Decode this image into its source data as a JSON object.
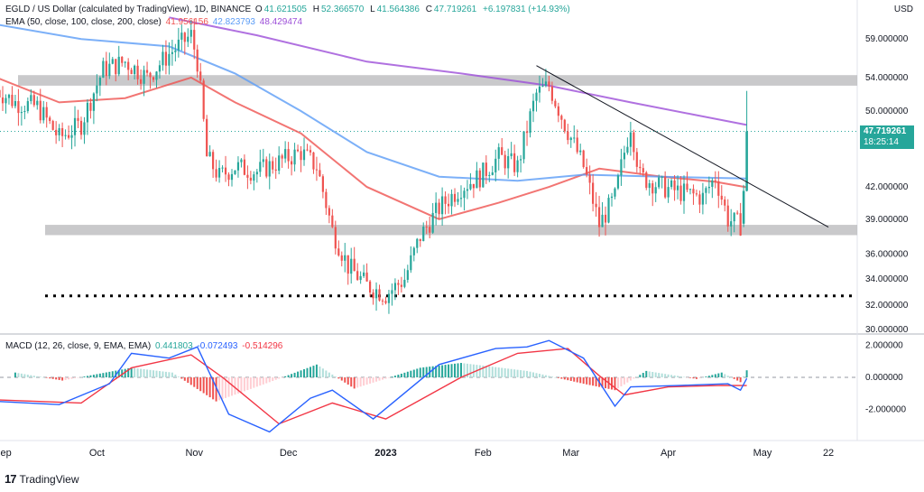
{
  "legend": {
    "symbol": "EGLD / US Dollar (calculated by TradingView), 1D, BINANCE",
    "o_label": "O",
    "o": "41.621505",
    "h_label": "H",
    "h": "52.366570",
    "l_label": "L",
    "l": "41.564386",
    "c_label": "C",
    "c": "47.719261",
    "change": "+6.197831 (+14.93%)",
    "ema_label": "EMA (50, close, 100, close, 200, close)",
    "ema50": "41.956156",
    "ema100": "42.823793",
    "ema200": "48.429474",
    "macd_label": "MACD (12, 26, close, 9, EMA, EMA)",
    "macd_hist": "0.441803",
    "macd_line": "-0.072493",
    "macd_signal": "-0.514296"
  },
  "currency": "USD",
  "last_price": "47.719261",
  "countdown": "18:25:14",
  "branding": "TradingView",
  "colors": {
    "up": "#26a69a",
    "down": "#ef5350",
    "ema50": "#ef5350",
    "ema100": "#5b9cf6",
    "ema200": "#9c4ed8",
    "macd_line": "#2962ff",
    "signal_line": "#f23645",
    "hist_up": "#26a69a",
    "hist_down": "#ef5350"
  },
  "chart_data": [
    {
      "type": "candlestick",
      "title": "EGLD / US Dollar",
      "interval": "1D",
      "y_scale": "log",
      "y_tick_labels": [
        "30.000000",
        "32.000000",
        "34.000000",
        "36.000000",
        "39.000000",
        "42.000000",
        "47.719261",
        "50.000000",
        "54.000000",
        "59.000000"
      ],
      "x_tick_labels": [
        "Sep",
        "Oct",
        "Nov",
        "Dec",
        "2023",
        "Feb",
        "Mar",
        "Apr",
        "May",
        "22"
      ],
      "price_path": [
        [
          "2022-08-30",
          52.5
        ],
        [
          "2022-09-05",
          51
        ],
        [
          "2022-09-12",
          50.5
        ],
        [
          "2022-09-19",
          47
        ],
        [
          "2022-09-26",
          48.5
        ],
        [
          "2022-10-03",
          55
        ],
        [
          "2022-10-10",
          56
        ],
        [
          "2022-10-17",
          54
        ],
        [
          "2022-10-24",
          57
        ],
        [
          "2022-10-31",
          59.5
        ],
        [
          "2022-11-02",
          56
        ],
        [
          "2022-11-05",
          45
        ],
        [
          "2022-11-09",
          43
        ],
        [
          "2022-11-14",
          44
        ],
        [
          "2022-11-21",
          43.5
        ],
        [
          "2022-11-28",
          44.5
        ],
        [
          "2022-12-05",
          45.5
        ],
        [
          "2022-12-10",
          44
        ],
        [
          "2022-12-15",
          38
        ],
        [
          "2022-12-20",
          35
        ],
        [
          "2022-12-26",
          33.5
        ],
        [
          "2023-01-01",
          32.8
        ],
        [
          "2023-01-07",
          34
        ],
        [
          "2023-01-12",
          37.5
        ],
        [
          "2023-01-18",
          40
        ],
        [
          "2023-01-25",
          42
        ],
        [
          "2023-01-31",
          43
        ],
        [
          "2023-02-06",
          45
        ],
        [
          "2023-02-12",
          44
        ],
        [
          "2023-02-18",
          52
        ],
        [
          "2023-02-22",
          53
        ],
        [
          "2023-02-27",
          48.5
        ],
        [
          "2023-03-05",
          44
        ],
        [
          "2023-03-10",
          38.5
        ],
        [
          "2023-03-15",
          41
        ],
        [
          "2023-03-20",
          48.5
        ],
        [
          "2023-03-23",
          43
        ],
        [
          "2023-03-30",
          42
        ],
        [
          "2023-04-05",
          41.5
        ],
        [
          "2023-04-12",
          41
        ],
        [
          "2023-04-16",
          43
        ],
        [
          "2023-04-20",
          39
        ],
        [
          "2023-04-24",
          38.5
        ],
        [
          "2023-04-25",
          41.6
        ],
        [
          "2023-04-26",
          47.7
        ]
      ],
      "last_candle": {
        "open": 41.621505,
        "high": 52.36657,
        "low": 41.564386,
        "close": 47.719261
      },
      "series": [
        {
          "name": "EMA 50",
          "path": [
            [
              "2022-08-30",
              54
            ],
            [
              "2022-09-19",
              51
            ],
            [
              "2022-10-10",
              51.5
            ],
            [
              "2022-10-31",
              54
            ],
            [
              "2022-11-14",
              51
            ],
            [
              "2022-12-05",
              47.5
            ],
            [
              "2022-12-26",
              42
            ],
            [
              "2023-01-18",
              39
            ],
            [
              "2023-02-06",
              40.5
            ],
            [
              "2023-02-22",
              42
            ],
            [
              "2023-03-10",
              43.8
            ],
            [
              "2023-03-30",
              43
            ],
            [
              "2023-04-16",
              42.5
            ],
            [
              "2023-04-26",
              41.96
            ]
          ]
        },
        {
          "name": "EMA 100",
          "path": [
            [
              "2022-08-30",
              61
            ],
            [
              "2022-09-26",
              59
            ],
            [
              "2022-10-24",
              58
            ],
            [
              "2022-11-14",
              54.5
            ],
            [
              "2022-12-05",
              50
            ],
            [
              "2022-12-26",
              45.5
            ],
            [
              "2023-01-18",
              43
            ],
            [
              "2023-02-12",
              42.6
            ],
            [
              "2023-03-05",
              43.2
            ],
            [
              "2023-03-30",
              43
            ],
            [
              "2023-04-26",
              42.82
            ]
          ]
        },
        {
          "name": "EMA 200",
          "path": [
            [
              "2022-10-24",
              62
            ],
            [
              "2022-11-21",
              59.5
            ],
            [
              "2022-12-26",
              56
            ],
            [
              "2023-01-25",
              54.5
            ],
            [
              "2023-02-22",
              53
            ],
            [
              "2023-03-20",
              51
            ],
            [
              "2023-04-26",
              48.43
            ]
          ]
        }
      ],
      "annotations": [
        {
          "type": "resistance_zone",
          "low": 53.0,
          "high": 54.3
        },
        {
          "type": "support_zone",
          "low": 37.6,
          "high": 38.5
        },
        {
          "type": "dotted_level",
          "value": 32.7
        },
        {
          "type": "trendline",
          "from": [
            "2023-02-18",
            55.5
          ],
          "to": [
            "2023-05-22",
            38.3
          ]
        }
      ]
    },
    {
      "type": "line",
      "title": "MACD (12, 26, close, 9, EMA, EMA)",
      "y_tick_labels": [
        "2.000000",
        "0.000000",
        "-2.000000"
      ],
      "ylim": [
        -3.8,
        2.8
      ],
      "series": [
        {
          "name": "MACD",
          "path": [
            [
              "2022-08-30",
              -1.5
            ],
            [
              "2022-09-19",
              -1.7
            ],
            [
              "2022-10-05",
              -0.4
            ],
            [
              "2022-10-12",
              1.5
            ],
            [
              "2022-10-24",
              1.2
            ],
            [
              "2022-11-02",
              1.9
            ],
            [
              "2022-11-12",
              -2.3
            ],
            [
              "2022-11-25",
              -3.4
            ],
            [
              "2022-12-08",
              -1.3
            ],
            [
              "2022-12-15",
              -0.8
            ],
            [
              "2022-12-28",
              -2.6
            ],
            [
              "2023-01-18",
              0.8
            ],
            [
              "2023-02-05",
              1.8
            ],
            [
              "2023-02-15",
              1.9
            ],
            [
              "2023-02-22",
              2.3
            ],
            [
              "2023-03-05",
              1.2
            ],
            [
              "2023-03-15",
              -1.8
            ],
            [
              "2023-03-20",
              -0.6
            ],
            [
              "2023-04-05",
              -0.5
            ],
            [
              "2023-04-20",
              -0.4
            ],
            [
              "2023-04-24",
              -0.8
            ],
            [
              "2023-04-26",
              -0.07
            ]
          ]
        },
        {
          "name": "Signal",
          "path": [
            [
              "2022-08-30",
              -1.4
            ],
            [
              "2022-09-26",
              -1.6
            ],
            [
              "2022-10-12",
              0.6
            ],
            [
              "2022-10-31",
              1.4
            ],
            [
              "2022-11-10",
              0
            ],
            [
              "2022-11-28",
              -2.9
            ],
            [
              "2022-12-15",
              -1.6
            ],
            [
              "2023-01-01",
              -2.6
            ],
            [
              "2023-01-25",
              0
            ],
            [
              "2023-02-12",
              1.5
            ],
            [
              "2023-02-28",
              1.8
            ],
            [
              "2023-03-10",
              0.1
            ],
            [
              "2023-03-18",
              -1.1
            ],
            [
              "2023-04-01",
              -0.6
            ],
            [
              "2023-04-18",
              -0.5
            ],
            [
              "2023-04-26",
              -0.51
            ]
          ]
        }
      ],
      "histogram": [
        [
          "2022-09-05",
          0.3
        ],
        [
          "2022-09-20",
          -0.2
        ],
        [
          "2022-10-12",
          0.6
        ],
        [
          "2022-10-25",
          0.3
        ],
        [
          "2022-11-08",
          -1.5
        ],
        [
          "2022-11-25",
          -0.3
        ],
        [
          "2022-12-10",
          0.8
        ],
        [
          "2022-12-22",
          -0.7
        ],
        [
          "2023-01-12",
          0.6
        ],
        [
          "2023-01-25",
          0.9
        ],
        [
          "2023-02-15",
          0.4
        ],
        [
          "2023-03-05",
          -0.4
        ],
        [
          "2023-03-15",
          -0.8
        ],
        [
          "2023-03-25",
          0.4
        ],
        [
          "2023-04-10",
          -0.1
        ],
        [
          "2023-04-18",
          0.3
        ],
        [
          "2023-04-24",
          -0.3
        ],
        [
          "2023-04-26",
          0.44
        ]
      ]
    }
  ]
}
